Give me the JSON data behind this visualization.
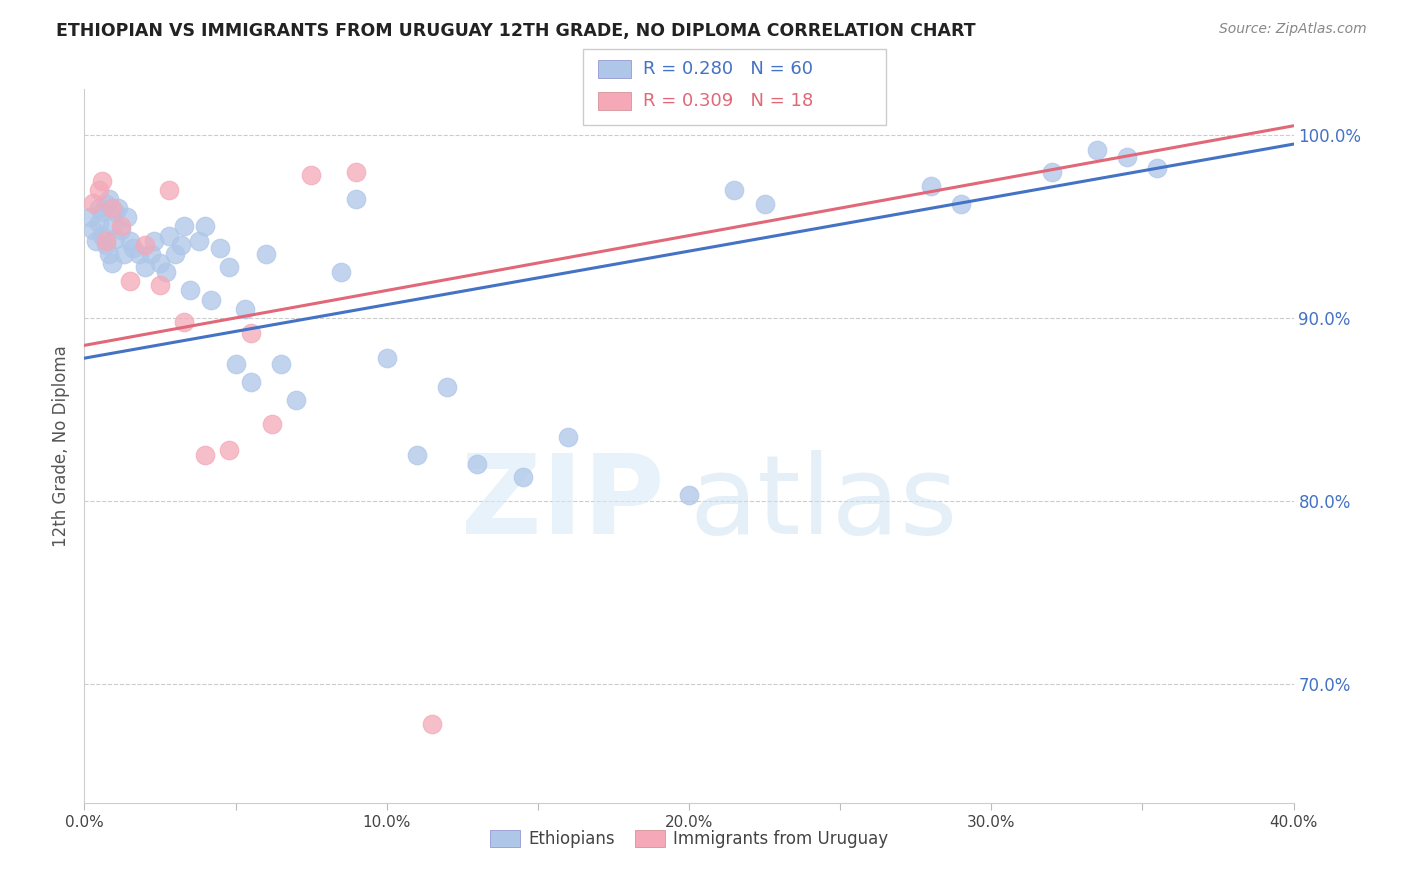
{
  "title": "ETHIOPIAN VS IMMIGRANTS FROM URUGUAY 12TH GRADE, NO DIPLOMA CORRELATION CHART",
  "source": "Source: ZipAtlas.com",
  "ylabel": "12th Grade, No Diploma",
  "xlim": [
    0.0,
    0.4
  ],
  "ylim": [
    0.635,
    1.025
  ],
  "xticks": [
    0.0,
    0.05,
    0.1,
    0.15,
    0.2,
    0.25,
    0.3,
    0.35,
    0.4
  ],
  "xticklabels": [
    "0.0%",
    "",
    "10.0%",
    "",
    "20.0%",
    "",
    "30.0%",
    "",
    "40.0%"
  ],
  "yticks_right": [
    0.7,
    0.8,
    0.9,
    1.0
  ],
  "ytick_right_labels": [
    "70.0%",
    "80.0%",
    "90.0%",
    "100.0%"
  ],
  "r_blue": 0.28,
  "n_blue": 60,
  "r_pink": 0.309,
  "n_pink": 18,
  "blue_color": "#aec6e8",
  "pink_color": "#f4a8b8",
  "blue_line_color": "#4472C4",
  "pink_line_color": "#E06878",
  "blue_line": [
    [
      0.0,
      0.878
    ],
    [
      0.4,
      0.995
    ]
  ],
  "pink_line": [
    [
      0.0,
      0.885
    ],
    [
      0.4,
      1.005
    ]
  ],
  "blue_scatter_x": [
    0.002,
    0.003,
    0.004,
    0.005,
    0.005,
    0.006,
    0.006,
    0.007,
    0.007,
    0.008,
    0.008,
    0.009,
    0.009,
    0.01,
    0.01,
    0.011,
    0.012,
    0.013,
    0.014,
    0.015,
    0.016,
    0.018,
    0.02,
    0.022,
    0.023,
    0.025,
    0.027,
    0.028,
    0.03,
    0.032,
    0.033,
    0.035,
    0.038,
    0.04,
    0.042,
    0.045,
    0.048,
    0.05,
    0.053,
    0.055,
    0.06,
    0.065,
    0.07,
    0.085,
    0.09,
    0.1,
    0.11,
    0.12,
    0.13,
    0.145,
    0.16,
    0.2,
    0.215,
    0.225,
    0.28,
    0.29,
    0.32,
    0.335,
    0.345,
    0.355
  ],
  "blue_scatter_y": [
    0.955,
    0.948,
    0.942,
    0.96,
    0.952,
    0.958,
    0.945,
    0.962,
    0.94,
    0.965,
    0.935,
    0.95,
    0.93,
    0.958,
    0.943,
    0.96,
    0.948,
    0.935,
    0.955,
    0.942,
    0.938,
    0.935,
    0.928,
    0.935,
    0.942,
    0.93,
    0.925,
    0.945,
    0.935,
    0.94,
    0.95,
    0.915,
    0.942,
    0.95,
    0.91,
    0.938,
    0.928,
    0.875,
    0.905,
    0.865,
    0.935,
    0.875,
    0.855,
    0.925,
    0.965,
    0.878,
    0.825,
    0.862,
    0.82,
    0.813,
    0.835,
    0.803,
    0.97,
    0.962,
    0.972,
    0.962,
    0.98,
    0.992,
    0.988,
    0.982
  ],
  "pink_scatter_x": [
    0.003,
    0.005,
    0.006,
    0.007,
    0.009,
    0.012,
    0.015,
    0.02,
    0.025,
    0.028,
    0.033,
    0.04,
    0.048,
    0.055,
    0.062,
    0.075,
    0.09,
    0.115
  ],
  "pink_scatter_y": [
    0.963,
    0.97,
    0.975,
    0.942,
    0.96,
    0.95,
    0.92,
    0.94,
    0.918,
    0.97,
    0.898,
    0.825,
    0.828,
    0.892,
    0.842,
    0.978,
    0.98,
    0.678
  ]
}
